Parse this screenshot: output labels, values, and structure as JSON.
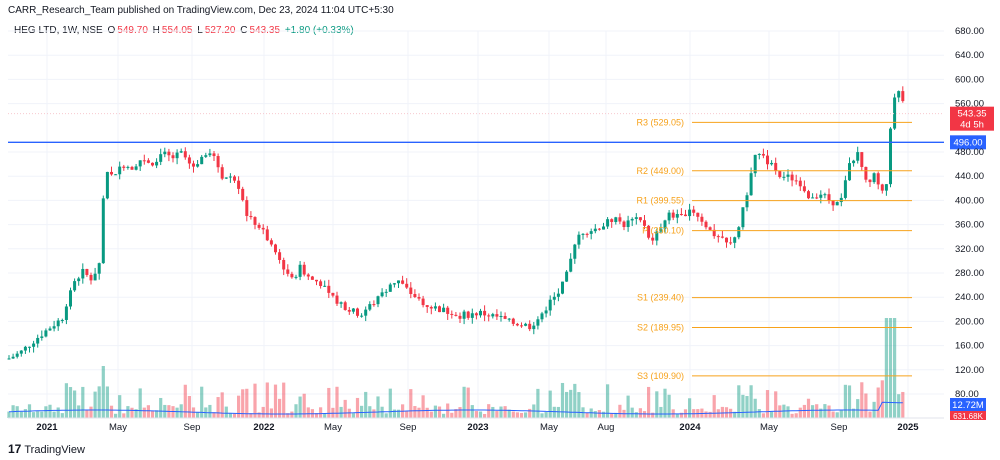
{
  "header": {
    "published": "CARR_Research_Team published on TradingView.com, Dec 23, 2024 11:04 UTC+5:30"
  },
  "legend": {
    "symbol": "HEG LTD, 1W, NSE",
    "o_label": "O",
    "o_value": "549.70",
    "h_label": "H",
    "h_value": "554.05",
    "l_label": "L",
    "l_value": "527.20",
    "c_label": "C",
    "c_value": "543.35",
    "change": "+1.80 (+0.33%)"
  },
  "price_badge": {
    "price": "543.35",
    "countdown": "4d 5h",
    "color": "#f23645"
  },
  "level_badge": {
    "value": "496.00",
    "color": "#2962ff"
  },
  "volume_badge": {
    "value": "12.72M",
    "color": "#2962ff"
  },
  "volume_badge2": {
    "value": "631.68K",
    "color": "#f23645"
  },
  "brand": {
    "logo": "17",
    "name": "TradingView"
  },
  "colors": {
    "up": "#089981",
    "down": "#f23645",
    "pivot": "#f7a21b",
    "level": "#2962ff",
    "ma": "#2962ff"
  },
  "chart_data": {
    "type": "candlestick",
    "y_ticks": [
      80,
      120,
      160,
      200,
      240,
      280,
      320,
      360,
      400,
      440,
      480,
      560,
      600,
      640,
      680
    ],
    "ylim": [
      80,
      680
    ],
    "x_ticks": [
      "2021",
      "May",
      "Sep",
      "2022",
      "May",
      "Sep",
      "2023",
      "May",
      "Aug",
      "2024",
      "May",
      "Sep",
      "2025"
    ],
    "horizontal_level": 496.0,
    "pivots": [
      {
        "name": "R3",
        "value": 529.05,
        "label": "R3 (529.05)"
      },
      {
        "name": "R2",
        "value": 449.0,
        "label": "R2 (449.00)"
      },
      {
        "name": "R1",
        "value": 399.55,
        "label": "R1 (399.55)"
      },
      {
        "name": "P",
        "value": 350.1,
        "label": "P (350.10)"
      },
      {
        "name": "S1",
        "value": 239.4,
        "label": "S1 (239.40)"
      },
      {
        "name": "S2",
        "value": 189.95,
        "label": "S2 (189.95)"
      },
      {
        "name": "S3",
        "value": 109.9,
        "label": "S3 (109.90)"
      }
    ],
    "last": {
      "open": 549.7,
      "high": 554.05,
      "low": 527.2,
      "close": 543.35
    },
    "volume_ma": 12.72,
    "volume_last": 0.63168
  }
}
